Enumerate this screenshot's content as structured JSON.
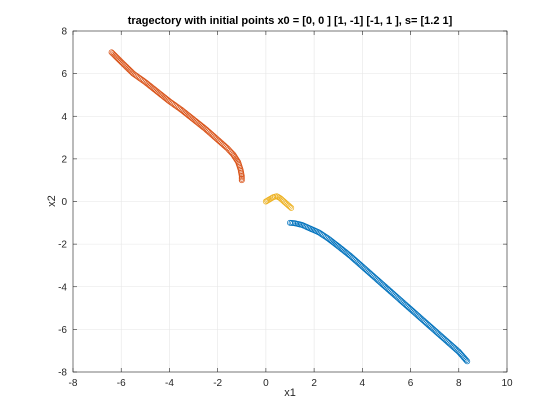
{
  "chart_data": {
    "type": "scatter",
    "title": "tragectory with initial points x0 = [0, 0 ] [1, -1] [-1, 1 ], s= [1.2  1]",
    "xlabel": "x1",
    "ylabel": "x2",
    "xlim": [
      -8,
      10
    ],
    "ylim": [
      -8,
      8
    ],
    "xticks": [
      -8,
      -6,
      -4,
      -2,
      0,
      2,
      4,
      6,
      8,
      10
    ],
    "yticks": [
      -8,
      -6,
      -4,
      -2,
      0,
      2,
      4,
      6,
      8
    ],
    "grid": true,
    "box": true,
    "marker": "circle-open",
    "series": [
      {
        "color": "#0072BD",
        "points": [
          [
            1.0,
            -1.0
          ],
          [
            1.2,
            -1.02
          ],
          [
            1.5,
            -1.1
          ],
          [
            1.8,
            -1.25
          ],
          [
            2.2,
            -1.45
          ],
          [
            2.6,
            -1.75
          ],
          [
            3.0,
            -2.1
          ],
          [
            3.5,
            -2.55
          ],
          [
            4.0,
            -3.05
          ],
          [
            4.5,
            -3.55
          ],
          [
            5.0,
            -4.05
          ],
          [
            5.5,
            -4.55
          ],
          [
            6.0,
            -5.05
          ],
          [
            6.5,
            -5.55
          ],
          [
            7.0,
            -6.05
          ],
          [
            7.5,
            -6.55
          ],
          [
            8.0,
            -7.05
          ],
          [
            8.35,
            -7.5
          ]
        ]
      },
      {
        "color": "#D95319",
        "points": [
          [
            -1.0,
            1.0
          ],
          [
            -1.0,
            1.2
          ],
          [
            -1.05,
            1.5
          ],
          [
            -1.15,
            1.85
          ],
          [
            -1.35,
            2.2
          ],
          [
            -1.6,
            2.5
          ],
          [
            -2.0,
            2.9
          ],
          [
            -2.5,
            3.4
          ],
          [
            -3.0,
            3.85
          ],
          [
            -3.5,
            4.3
          ],
          [
            -4.0,
            4.7
          ],
          [
            -4.5,
            5.15
          ],
          [
            -5.0,
            5.6
          ],
          [
            -5.5,
            6.0
          ],
          [
            -6.0,
            6.55
          ],
          [
            -6.4,
            7.0
          ]
        ]
      },
      {
        "color": "#EDB120",
        "points": [
          [
            0.0,
            0.0
          ],
          [
            0.15,
            0.1
          ],
          [
            0.3,
            0.2
          ],
          [
            0.45,
            0.25
          ],
          [
            0.6,
            0.15
          ],
          [
            0.75,
            0.0
          ],
          [
            0.9,
            -0.15
          ],
          [
            1.05,
            -0.3
          ]
        ]
      }
    ]
  }
}
